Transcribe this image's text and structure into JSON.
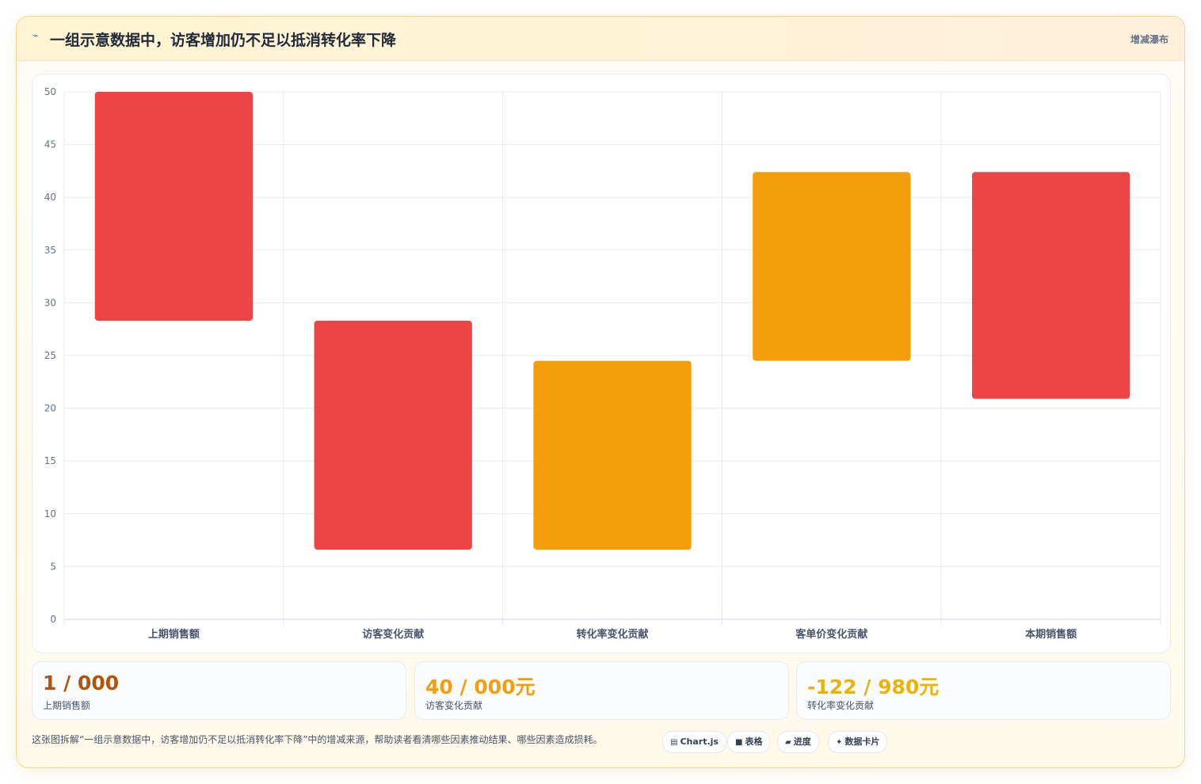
{
  "header": {
    "icon": "⌁",
    "title": "一组示意数据中，访客增加仍不足以抵消转化率下降",
    "tag": "增减瀑布"
  },
  "chart_data": {
    "type": "bar",
    "subtype": "floating-waterfall",
    "categories": [
      "上期销售额",
      "访客变化贡献",
      "转化率变化贡献",
      "客单价变化贡献",
      "本期销售额"
    ],
    "ranges": [
      [
        28.3,
        50
      ],
      [
        6.6,
        28.3
      ],
      [
        6.6,
        24.5
      ],
      [
        24.5,
        42.4
      ],
      [
        20.9,
        42.4
      ]
    ],
    "bar_colors": [
      "#ef4444",
      "#ef4444",
      "#f59e0b",
      "#f59e0b",
      "#ef4444"
    ],
    "ylim": [
      0,
      50
    ],
    "yticks": [
      0,
      5,
      10,
      15,
      20,
      25,
      30,
      35,
      40,
      45,
      50
    ],
    "grid": true,
    "title": "",
    "xlabel": "",
    "ylabel": ""
  },
  "kpis": [
    {
      "value": "1 / 000",
      "label": "上期销售额",
      "color": "#b45309"
    },
    {
      "value": "40 / 000元",
      "label": "访客变化贡献",
      "color": "#f59e0b"
    },
    {
      "value": "-122 / 980元",
      "label": "转化率变化贡献",
      "color": "#eab308"
    }
  ],
  "footer": {
    "description": "这张图拆解“一组示意数据中，访客增加仍不足以抵消转化率下降”中的增减来源，帮助读者看清哪些因素推动结果、哪些因素造成损耗。",
    "pills": [
      {
        "icon": "▤",
        "label": "Chart.js"
      },
      {
        "icon": "■",
        "label": "表格"
      },
      {
        "icon": "▰",
        "label": "进度"
      },
      {
        "icon": "✦",
        "label": "数据卡片"
      }
    ]
  }
}
